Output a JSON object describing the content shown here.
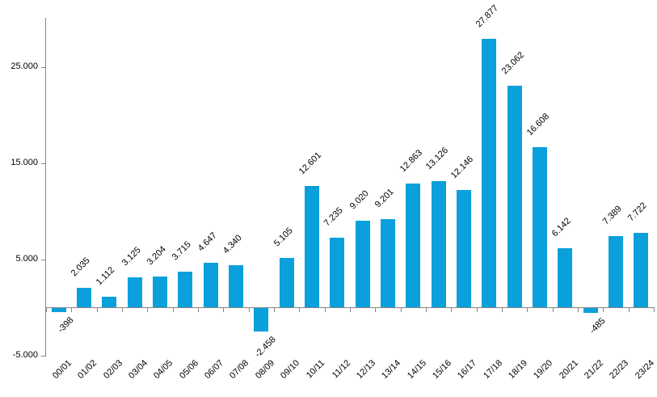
{
  "chart_data": {
    "type": "bar",
    "title": "",
    "xlabel": "",
    "ylabel": "",
    "categories": [
      "00/01",
      "01/02",
      "02/03",
      "03/04",
      "04/05",
      "05/06",
      "06/07",
      "07/08",
      "08/09",
      "09/10",
      "10/11",
      "11/12",
      "12/13",
      "13/14",
      "14/15",
      "15/16",
      "16/17",
      "17/18",
      "18/19",
      "19/20",
      "20/21",
      "21/22",
      "22/23",
      "23/24"
    ],
    "values": [
      -398,
      2035,
      1112,
      3125,
      3204,
      3715,
      4647,
      4340,
      -2458,
      5105,
      12601,
      7235,
      9020,
      9201,
      12863,
      13126,
      12146,
      27877,
      23062,
      16608,
      6142,
      -485,
      7389,
      7722
    ],
    "value_labels": [
      "-398",
      "2.035",
      "1.112",
      "3.125",
      "3.204",
      "3.715",
      "4.647",
      "4.340",
      "-2.458",
      "5.105",
      "12.601",
      "7.235",
      "9.020",
      "9.201",
      "12.863",
      "13.126",
      "12.146",
      "27.877",
      "23.062",
      "16.608",
      "6.142",
      "-485",
      "7.389",
      "7.722"
    ],
    "y_ticks": [
      {
        "label": "25.000",
        "value": 25000
      },
      {
        "label": "15.000",
        "value": 15000
      },
      {
        "label": "5.000",
        "value": 5000
      },
      {
        "label": "-5.000",
        "value": -5000
      }
    ],
    "ylim": [
      -5000,
      30000
    ],
    "grid": "off",
    "legend": "none",
    "label_rotation_deg": -45,
    "series_color": "#0AA0DC",
    "axis_color": "#858585",
    "text_color": "#000000",
    "background": "#FFFFFF"
  }
}
